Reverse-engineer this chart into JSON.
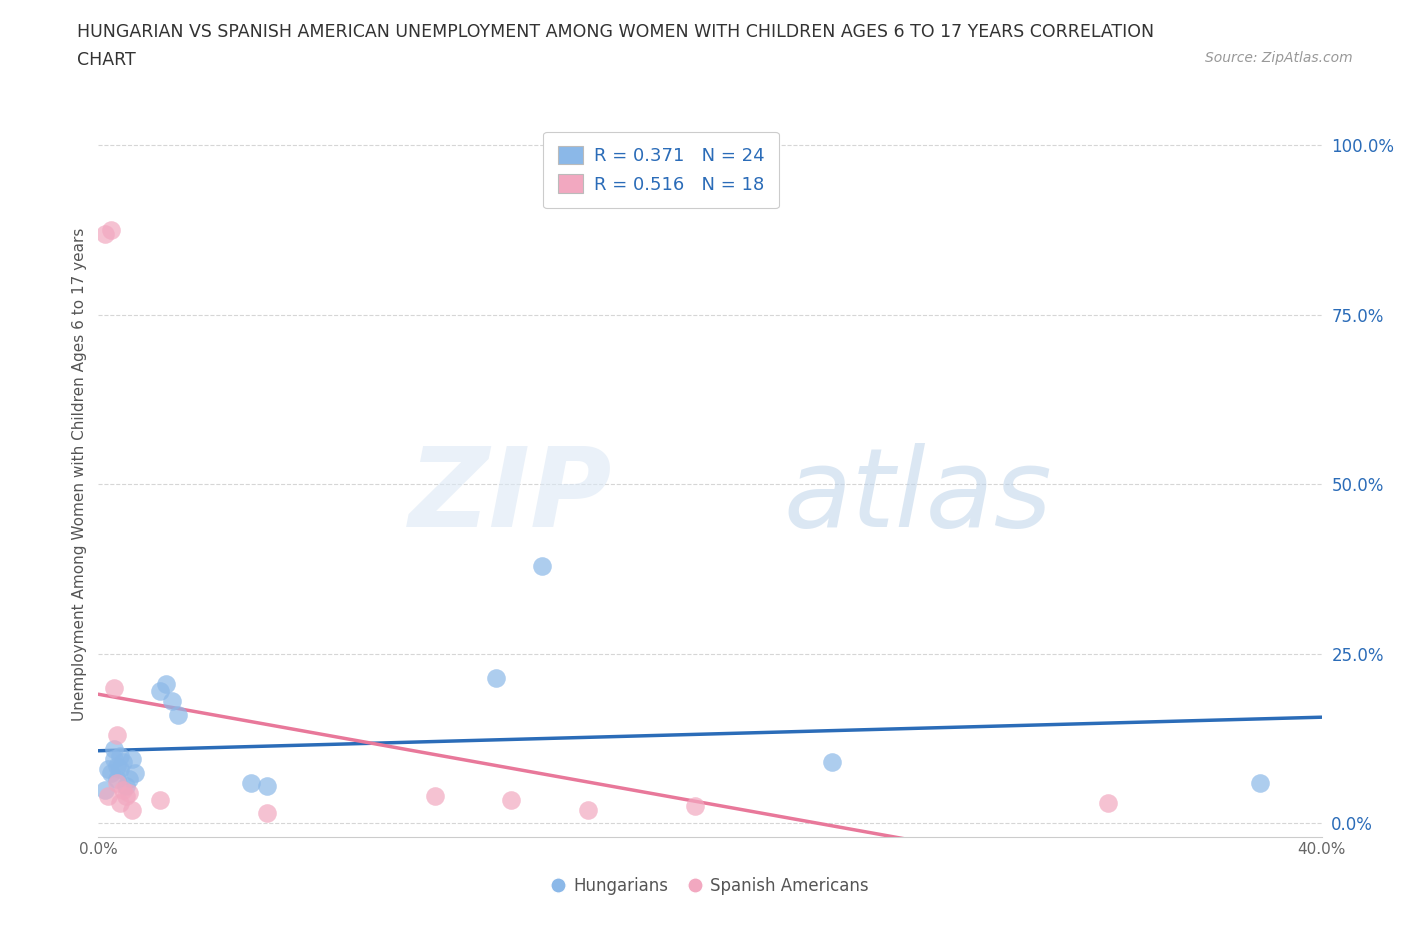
{
  "title_line1": "HUNGARIAN VS SPANISH AMERICAN UNEMPLOYMENT AMONG WOMEN WITH CHILDREN AGES 6 TO 17 YEARS CORRELATION",
  "title_line2": "CHART",
  "source": "Source: ZipAtlas.com",
  "ylabel": "Unemployment Among Women with Children Ages 6 to 17 years",
  "xlim": [
    0.0,
    0.4
  ],
  "ylim": [
    -0.02,
    1.05
  ],
  "yticks": [
    0.0,
    0.25,
    0.5,
    0.75,
    1.0
  ],
  "ytick_labels": [
    "0.0%",
    "25.0%",
    "50.0%",
    "75.0%",
    "100.0%"
  ],
  "xticks": [
    0.0,
    0.1,
    0.2,
    0.3,
    0.4
  ],
  "xtick_labels": [
    "0.0%",
    "",
    "",
    "",
    "40.0%"
  ],
  "hungarian_color": "#8bb8e8",
  "spanish_color": "#f2a8c0",
  "hungarian_R": 0.371,
  "hungarian_N": 24,
  "spanish_R": 0.516,
  "spanish_N": 18,
  "hungarian_line_color": "#2b6cb8",
  "spanish_line_color": "#e8789a",
  "background_color": "#ffffff",
  "hungarian_x": [
    0.002,
    0.003,
    0.004,
    0.005,
    0.005,
    0.006,
    0.006,
    0.007,
    0.007,
    0.008,
    0.009,
    0.01,
    0.011,
    0.012,
    0.02,
    0.022,
    0.024,
    0.026,
    0.05,
    0.055,
    0.13,
    0.145,
    0.24,
    0.38
  ],
  "hungarian_y": [
    0.05,
    0.08,
    0.075,
    0.095,
    0.11,
    0.065,
    0.085,
    0.08,
    0.1,
    0.09,
    0.055,
    0.065,
    0.095,
    0.075,
    0.195,
    0.205,
    0.18,
    0.16,
    0.06,
    0.055,
    0.215,
    0.38,
    0.09,
    0.06
  ],
  "spanish_x": [
    0.002,
    0.003,
    0.004,
    0.005,
    0.006,
    0.006,
    0.007,
    0.008,
    0.009,
    0.01,
    0.011,
    0.02,
    0.055,
    0.11,
    0.135,
    0.16,
    0.195,
    0.33
  ],
  "spanish_y": [
    0.87,
    0.04,
    0.875,
    0.2,
    0.13,
    0.06,
    0.03,
    0.05,
    0.04,
    0.045,
    0.02,
    0.035,
    0.015,
    0.04,
    0.035,
    0.02,
    0.025,
    0.03
  ]
}
